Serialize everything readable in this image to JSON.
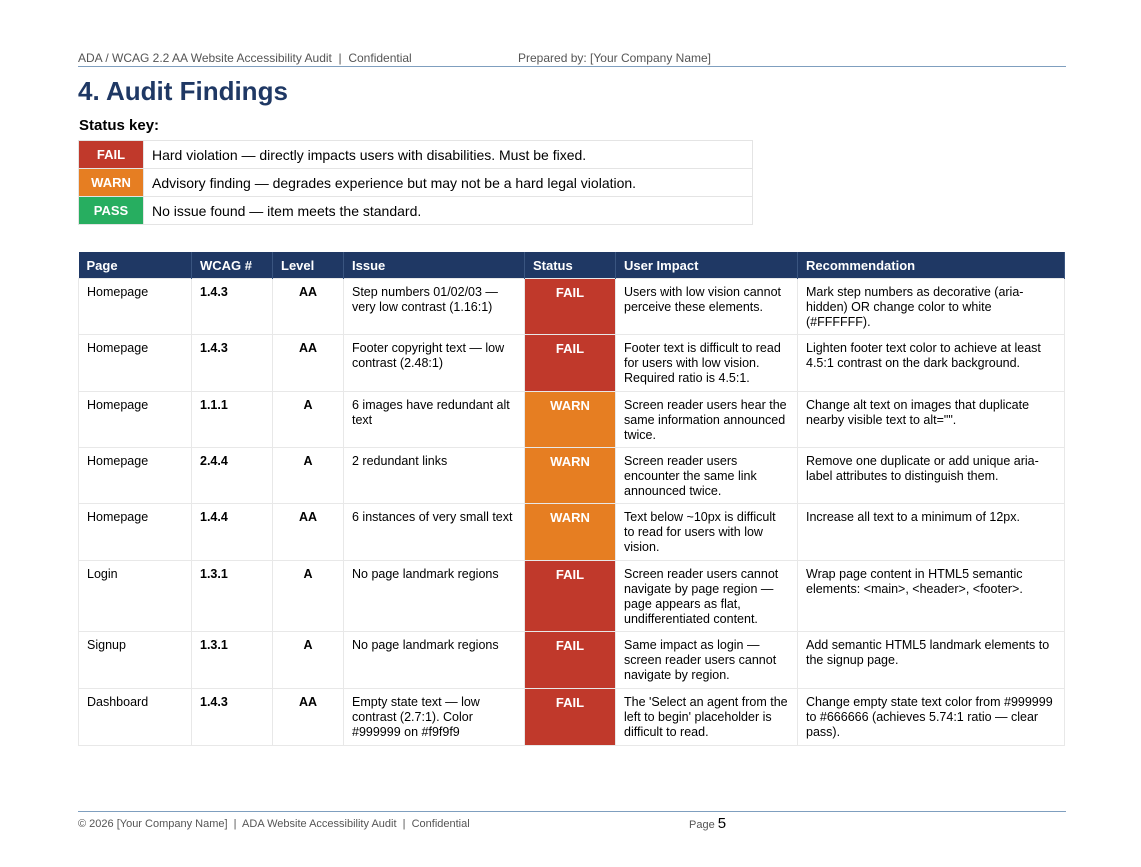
{
  "header": {
    "left": "ADA / WCAG 2.2 AA Website Accessibility Audit  |  Confidential",
    "right": "Prepared by: [Your Company Name]"
  },
  "title": "4. Audit Findings",
  "status_key": {
    "title": "Status key:",
    "items": [
      {
        "badge": "FAIL",
        "desc": "Hard violation — directly impacts users with disabilities. Must be fixed.",
        "color": "#c0392b"
      },
      {
        "badge": "WARN",
        "desc": "Advisory finding — degrades experience but may not be a hard legal violation.",
        "color": "#e67e22"
      },
      {
        "badge": "PASS",
        "desc": "No issue found — item meets the standard.",
        "color": "#27ae60"
      }
    ]
  },
  "table": {
    "headers": [
      "Page",
      "WCAG #",
      "Level",
      "Issue",
      "Status",
      "User Impact",
      "Recommendation"
    ],
    "rows": [
      {
        "page": "Homepage",
        "wcag": "1.4.3",
        "level": "AA",
        "issue": "Step numbers 01/02/03 — very low contrast (1.16:1)",
        "status": "FAIL",
        "impact": "Users with low vision cannot perceive these elements.",
        "rec": "Mark step numbers as decorative (aria-hidden) OR change color to white (#FFFFFF)."
      },
      {
        "page": "Homepage",
        "wcag": "1.4.3",
        "level": "AA",
        "issue": "Footer copyright text — low contrast (2.48:1)",
        "status": "FAIL",
        "impact": "Footer text is difficult to read for users with low vision. Required ratio is 4.5:1.",
        "rec": "Lighten footer text color to achieve at least 4.5:1 contrast on the dark background."
      },
      {
        "page": "Homepage",
        "wcag": "1.1.1",
        "level": "A",
        "issue": "6 images have redundant alt text",
        "status": "WARN",
        "impact": "Screen reader users hear the same information announced twice.",
        "rec": "Change alt text on images that duplicate nearby visible text to alt=\"\"."
      },
      {
        "page": "Homepage",
        "wcag": "2.4.4",
        "level": "A",
        "issue": "2 redundant links",
        "status": "WARN",
        "impact": "Screen reader users encounter the same link announced twice.",
        "rec": "Remove one duplicate or add unique aria-label attributes to distinguish them."
      },
      {
        "page": "Homepage",
        "wcag": "1.4.4",
        "level": "AA",
        "issue": "6 instances of very small text",
        "status": "WARN",
        "impact": "Text below ~10px is difficult to read for users with low vision.",
        "rec": "Increase all text to a minimum of 12px."
      },
      {
        "page": "Login",
        "wcag": "1.3.1",
        "level": "A",
        "issue": "No page landmark regions",
        "status": "FAIL",
        "impact": "Screen reader users cannot navigate by page region — page appears as flat, undifferentiated content.",
        "rec": "Wrap page content in HTML5 semantic elements: <main>, <header>, <footer>."
      },
      {
        "page": "Signup",
        "wcag": "1.3.1",
        "level": "A",
        "issue": "No page landmark regions",
        "status": "FAIL",
        "impact": "Same impact as login — screen reader users cannot navigate by region.",
        "rec": "Add semantic HTML5 landmark elements to the signup page."
      },
      {
        "page": "Dashboard",
        "wcag": "1.4.3",
        "level": "AA",
        "issue": "Empty state text — low contrast (2.7:1). Color #999999 on #f9f9f9",
        "status": "FAIL",
        "impact": "The 'Select an agent from the left to begin' placeholder is difficult to read.",
        "rec": "Change empty state text color from #999999 to #666666 (achieves 5.74:1 ratio — clear pass)."
      }
    ]
  },
  "status_colors": {
    "FAIL": "#c0392b",
    "WARN": "#e67e22",
    "PASS": "#27ae60"
  },
  "footer": {
    "left": "© 2026 [Your Company Name]  |  ADA Website Accessibility Audit  |  Confidential",
    "page_label": "Page",
    "page_number": "5"
  }
}
